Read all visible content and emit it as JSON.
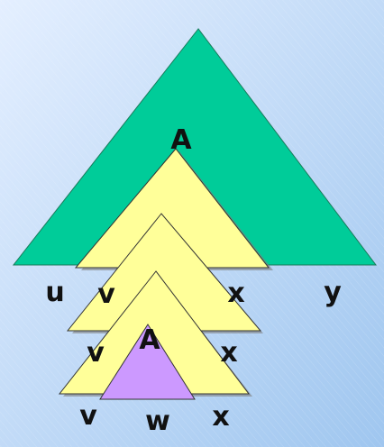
{
  "colors": {
    "background_top": "#dbeaff",
    "background_bottom": "#a9cdf2",
    "outer_triangle": "#00cc99",
    "nested_triangle": "#ffff99",
    "innermost_triangle": "#cc99ff",
    "label_color": "#111111"
  },
  "labels": {
    "top_A": "A",
    "u": "u",
    "v1": "v",
    "x1": "x",
    "y": "y",
    "v2": "v",
    "x2": "x",
    "A2": "A",
    "v3": "v",
    "w": "w",
    "x3": "x"
  }
}
